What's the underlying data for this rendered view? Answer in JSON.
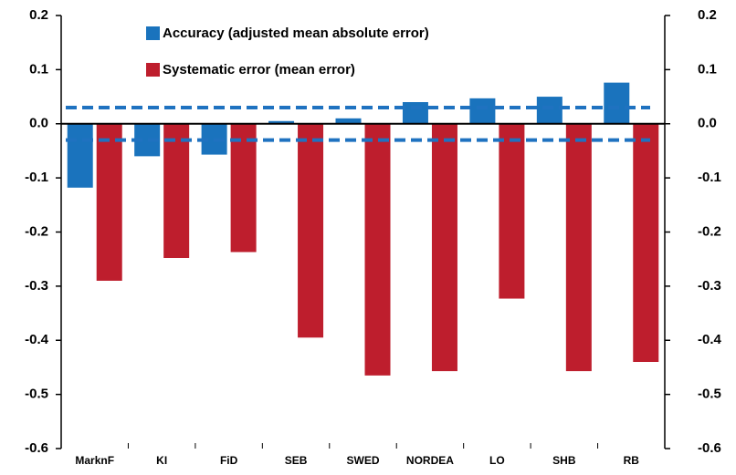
{
  "chart_data": {
    "type": "bar",
    "categories": [
      "MarknF",
      "KI",
      "FiD",
      "SEB",
      "SWED",
      "NORDEA",
      "LO",
      "SHB",
      "RB"
    ],
    "series": [
      {
        "name": "Accuracy (adjusted mean absolute error)",
        "color": "#1a73bd",
        "values": [
          -0.118,
          -0.06,
          -0.057,
          0.005,
          0.01,
          0.04,
          0.047,
          0.05,
          0.076
        ]
      },
      {
        "name": "Systematic error (mean error)",
        "color": "#be1e2d",
        "values": [
          -0.29,
          -0.248,
          -0.237,
          -0.395,
          -0.465,
          -0.457,
          -0.323,
          -0.457,
          -0.44
        ]
      }
    ],
    "reference_lines": [
      0.03,
      -0.03
    ],
    "reference_color": "#1f72c0",
    "ylim": [
      -0.6,
      0.2
    ],
    "yticks": [
      -0.6,
      -0.5,
      -0.4,
      -0.3,
      -0.2,
      -0.1,
      {
        "value": 0,
        "label": "0.0"
      },
      0.1,
      0.2
    ],
    "y2lim": [
      -0.6,
      0.2
    ],
    "y2ticks": [
      -0.6,
      -0.5,
      -0.4,
      -0.3,
      -0.2,
      -0.1,
      {
        "value": 0,
        "label": "0.0"
      },
      0.1,
      0.2
    ],
    "legend": "top-left"
  }
}
